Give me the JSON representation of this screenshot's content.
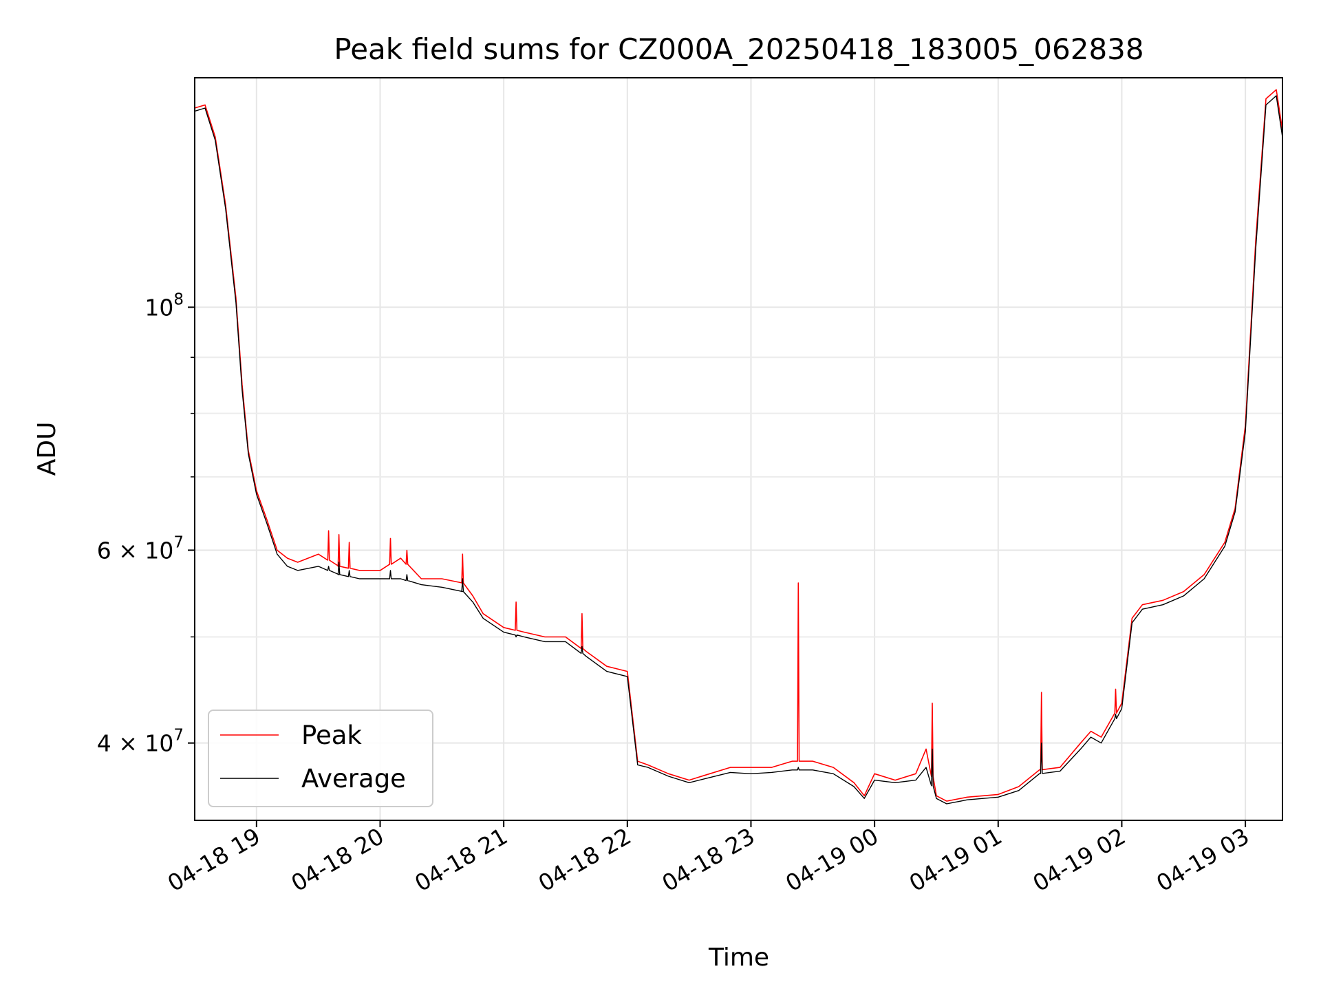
{
  "chart_data": {
    "type": "line",
    "title": "Peak field sums for CZ000A_20250418_183005_062838",
    "xlabel": "Time",
    "ylabel": "ADU",
    "yscale": "log",
    "ylim": [
      34000000,
      162000000
    ],
    "xlim": [
      "04-18 18:30",
      "04-19 03:18"
    ],
    "grid": true,
    "legend_position": "lower-left",
    "x_ticks": [
      "04-18 19",
      "04-18 20",
      "04-18 21",
      "04-18 22",
      "04-18 23",
      "04-19 00",
      "04-19 01",
      "04-19 02",
      "04-19 03"
    ],
    "y_ticks": [
      {
        "value": 40000000,
        "mantissa": "4",
        "times": "×",
        "base": "10",
        "exp": "7"
      },
      {
        "value": 60000000,
        "mantissa": "6",
        "times": "×",
        "base": "10",
        "exp": "7"
      },
      {
        "value": 100000000,
        "mantissa": "",
        "times": "",
        "base": "10",
        "exp": "8"
      }
    ],
    "y_minor_ticks": [
      50000000,
      70000000,
      80000000,
      90000000
    ],
    "x": [
      "04-18 18:30",
      "04-18 18:35",
      "04-18 18:40",
      "04-18 18:45",
      "04-18 18:50",
      "04-18 18:53",
      "04-18 18:56",
      "04-18 19:00",
      "04-18 19:05",
      "04-18 19:10",
      "04-18 19:15",
      "04-18 19:20",
      "04-18 19:30",
      "04-18 19:40",
      "04-18 19:50",
      "04-18 20:00",
      "04-18 20:10",
      "04-18 20:20",
      "04-18 20:30",
      "04-18 20:40",
      "04-18 20:45",
      "04-18 20:50",
      "04-18 21:00",
      "04-18 21:10",
      "04-18 21:20",
      "04-18 21:30",
      "04-18 21:40",
      "04-18 21:50",
      "04-18 22:00",
      "04-18 22:05",
      "04-18 22:10",
      "04-18 22:20",
      "04-18 22:30",
      "04-18 22:40",
      "04-18 22:50",
      "04-18 23:00",
      "04-18 23:10",
      "04-18 23:20",
      "04-18 23:30",
      "04-18 23:40",
      "04-18 23:50",
      "04-18 23:55",
      "04-19 00:00",
      "04-19 00:10",
      "04-19 00:20",
      "04-19 00:25",
      "04-19 00:30",
      "04-19 00:35",
      "04-19 00:45",
      "04-19 01:00",
      "04-19 01:10",
      "04-19 01:20",
      "04-19 01:30",
      "04-19 01:40",
      "04-19 01:45",
      "04-19 01:50",
      "04-19 02:00",
      "04-19 02:05",
      "04-19 02:10",
      "04-19 02:20",
      "04-19 02:30",
      "04-19 02:40",
      "04-19 02:50",
      "04-19 02:55",
      "04-19 03:00",
      "04-19 03:05",
      "04-19 03:10",
      "04-19 03:15",
      "04-19 03:18"
    ],
    "series": [
      {
        "name": "Peak",
        "color": "#ff0000",
        "values": [
          152000000,
          153000000,
          143000000,
          124000000,
          102000000,
          85000000,
          74000000,
          68000000,
          64000000,
          60000000,
          59000000,
          58500000,
          59500000,
          58000000,
          57500000,
          57500000,
          59000000,
          56500000,
          56500000,
          56000000,
          54500000,
          52500000,
          51000000,
          50500000,
          50000000,
          50000000,
          48500000,
          47000000,
          46500000,
          38500000,
          38200000,
          37500000,
          37000000,
          37500000,
          38000000,
          38000000,
          38000000,
          38500000,
          38500000,
          38000000,
          36800000,
          35800000,
          37500000,
          37000000,
          37500000,
          39500000,
          35800000,
          35400000,
          35700000,
          35900000,
          36500000,
          37800000,
          38000000,
          40000000,
          41000000,
          40500000,
          43500000,
          52000000,
          53500000,
          54000000,
          55000000,
          57000000,
          61000000,
          65500000,
          78000000,
          115000000,
          155000000,
          158000000,
          145000000
        ]
      },
      {
        "name": "Average",
        "color": "#000000",
        "values": [
          151000000,
          152000000,
          142000000,
          123000000,
          101000000,
          84000000,
          73500000,
          67500000,
          63500000,
          59500000,
          58000000,
          57500000,
          58000000,
          57000000,
          56500000,
          56500000,
          56500000,
          55800000,
          55500000,
          55000000,
          53800000,
          52000000,
          50500000,
          50000000,
          49500000,
          49500000,
          48000000,
          46500000,
          46000000,
          38200000,
          38000000,
          37300000,
          36800000,
          37200000,
          37600000,
          37500000,
          37600000,
          37800000,
          37800000,
          37500000,
          36500000,
          35600000,
          37000000,
          36800000,
          37000000,
          38000000,
          35600000,
          35200000,
          35500000,
          35700000,
          36200000,
          37500000,
          37700000,
          39500000,
          40500000,
          40000000,
          43000000,
          51500000,
          53000000,
          53500000,
          54500000,
          56500000,
          60500000,
          65000000,
          77000000,
          113000000,
          153000000,
          156000000,
          143000000
        ]
      }
    ],
    "spikes": [
      {
        "x": "04-18 23:23",
        "peak": 56000000,
        "average": 38000000
      },
      {
        "x": "04-19 00:28",
        "peak": 43500000,
        "average": 39500000
      },
      {
        "x": "04-19 01:21",
        "peak": 44500000,
        "average": 40000000
      },
      {
        "x": "04-19 01:57",
        "peak": 44800000,
        "average": 42500000
      },
      {
        "x": "04-18 21:38",
        "peak": 52500000,
        "average": 49000000
      },
      {
        "x": "04-18 21:06",
        "peak": 53800000,
        "average": 50000000
      },
      {
        "x": "04-18 20:40",
        "peak": 59500000,
        "average": 56500000
      },
      {
        "x": "04-18 19:40",
        "peak": 62000000,
        "average": 58500000
      },
      {
        "x": "04-18 19:35",
        "peak": 62500000,
        "average": 58000000
      },
      {
        "x": "04-18 19:45",
        "peak": 61000000,
        "average": 57500000
      },
      {
        "x": "04-18 20:05",
        "peak": 61500000,
        "average": 57500000
      },
      {
        "x": "04-18 20:13",
        "peak": 60000000,
        "average": 57000000
      }
    ]
  }
}
